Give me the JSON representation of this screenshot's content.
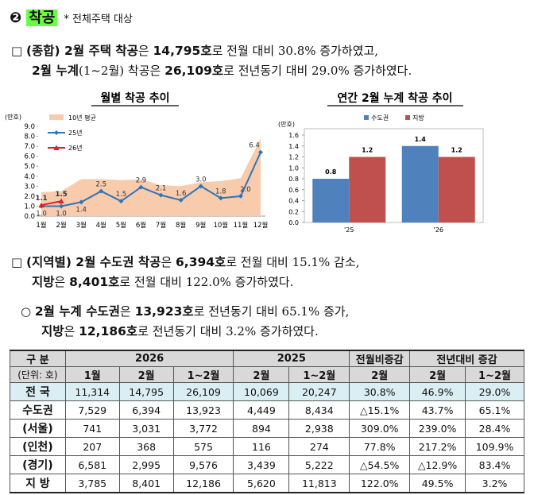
{
  "header": {
    "number": "❷",
    "title": "착공",
    "note": "* 전체주택 대상"
  },
  "paragraphs": [
    {
      "lines": [
        [
          {
            "t": "□ "
          },
          {
            "t": "(종합) 2월 주택 착공",
            "b": true
          },
          {
            "t": "은 "
          },
          {
            "t": "14,795호",
            "b": true
          },
          {
            "t": "로 전월 대비 30.8% 증가하였고,"
          }
        ],
        [
          {
            "t": "2월 누계",
            "b": true
          },
          {
            "t": "(1~2월) 착공은 "
          },
          {
            "t": "26,109호",
            "b": true
          },
          {
            "t": "로 전년동기 대비 29.0% 증가하였다."
          }
        ]
      ]
    },
    {
      "lines": [
        [
          {
            "t": "□ "
          },
          {
            "t": "(지역별) 2월 수도권 착공",
            "b": true
          },
          {
            "t": "은 "
          },
          {
            "t": "6,394호",
            "b": true
          },
          {
            "t": "로 전월 대비 15.1% 감소,"
          }
        ],
        [
          {
            "t": "지방",
            "b": true
          },
          {
            "t": "은 "
          },
          {
            "t": "8,401호",
            "b": true
          },
          {
            "t": "로 전월 대비 122.0% 증가하였다."
          }
        ]
      ]
    },
    {
      "lines": [
        [
          {
            "t": "○ "
          },
          {
            "t": "2월 누계 수도권",
            "b": true
          },
          {
            "t": "은 "
          },
          {
            "t": "13,923호",
            "b": true
          },
          {
            "t": "로 전년동기 대비 65.1% 증가,"
          }
        ],
        [
          {
            "t": "지방",
            "b": true
          },
          {
            "t": "은 "
          },
          {
            "t": "12,186호",
            "b": true
          },
          {
            "t": "로 전년동기 대비 3.2% 증가하였다."
          }
        ]
      ]
    }
  ],
  "chart_data": [
    {
      "type": "line",
      "title": "월별 착공 추이",
      "ylabel": "(만호)",
      "categories": [
        "1월",
        "2월",
        "3월",
        "4월",
        "5월",
        "6월",
        "7월",
        "8월",
        "9월",
        "10월",
        "11월",
        "12월"
      ],
      "series": [
        {
          "name": "10년 평균",
          "kind": "area",
          "color": "#f8cbad",
          "values": [
            2.4,
            2.5,
            3.7,
            3.7,
            3.6,
            3.7,
            3.1,
            3.0,
            3.4,
            3.5,
            3.8,
            7.8
          ]
        },
        {
          "name": "25년",
          "kind": "line",
          "color": "#2e75b6",
          "values": [
            1.0,
            1.0,
            1.4,
            2.5,
            1.5,
            2.9,
            2.1,
            1.6,
            3.0,
            1.8,
            2.0,
            6.4
          ],
          "value_labels": [
            "1.0",
            "1.0",
            "1.4",
            "2.5",
            "1.5",
            "2.9",
            "2.1",
            "1.6",
            "3.0",
            "1.8",
            "2.0",
            "6.4"
          ]
        },
        {
          "name": "26년",
          "kind": "line",
          "color": "#e02020",
          "values": [
            1.1,
            1.5,
            null,
            null,
            null,
            null,
            null,
            null,
            null,
            null,
            null,
            null
          ]
        }
      ],
      "ylim": [
        0,
        9
      ],
      "yticks": [
        {
          "value": 0,
          "label": "0.0"
        },
        {
          "value": 1,
          "label": "1.0"
        },
        {
          "value": 2,
          "label": "2.0"
        },
        {
          "value": 3,
          "label": "3.0"
        },
        {
          "value": 4,
          "label": "4.0"
        },
        {
          "value": 5,
          "label": "5.0"
        },
        {
          "value": 6,
          "label": "6.0"
        },
        {
          "value": 7,
          "label": "7.0"
        },
        {
          "value": 8,
          "label": "8.0"
        },
        {
          "value": 9,
          "label": "9.0"
        }
      ]
    },
    {
      "type": "bar",
      "title": "연간 2월 누계 착공 추이",
      "ylabel": "(만호)",
      "categories": [
        "'25",
        "'26"
      ],
      "series": [
        {
          "name": "수도권",
          "color": "#4f81bd",
          "values": [
            0.8,
            1.4
          ]
        },
        {
          "name": "지방",
          "color": "#c0504d",
          "values": [
            1.2,
            1.2
          ]
        }
      ],
      "ylim": [
        0,
        1.6
      ],
      "yticks": [
        {
          "value": 0,
          "label": "0.0"
        },
        {
          "value": 0.2,
          "label": "0.2"
        },
        {
          "value": 0.4,
          "label": "0.4"
        },
        {
          "value": 0.6,
          "label": "0.6"
        },
        {
          "value": 0.8,
          "label": "0.8"
        },
        {
          "value": 1.0,
          "label": "1.0"
        },
        {
          "value": 1.2,
          "label": "1.2"
        },
        {
          "value": 1.4,
          "label": "1.4"
        },
        {
          "value": 1.6,
          "label": "1.6"
        }
      ]
    }
  ],
  "table": {
    "head": [
      [
        "구 분",
        "2026",
        "2025",
        "전월비증감",
        "전년대비 증감"
      ],
      [
        "(단위: 호)",
        "1월",
        "2월",
        "1~2월",
        "2월",
        "1~2월",
        "2월",
        "2월",
        "1~2월"
      ]
    ],
    "rows": [
      [
        "전 국",
        "11,314",
        "14,795",
        "26,109",
        "10,069",
        "20,247",
        "30.8%",
        "46.9%",
        "29.0%"
      ],
      [
        "수도권",
        "7,529",
        "6,394",
        "13,923",
        "4,449",
        "8,434",
        "△15.1%",
        "43.7%",
        "65.1%"
      ],
      [
        "(서울)",
        "741",
        "3,031",
        "3,772",
        "894",
        "2,938",
        "309.0%",
        "239.0%",
        "28.4%"
      ],
      [
        "(인천)",
        "207",
        "368",
        "575",
        "116",
        "274",
        "77.8%",
        "217.2%",
        "109.9%"
      ],
      [
        "(경기)",
        "6,581",
        "2,995",
        "9,576",
        "3,439",
        "5,222",
        "△54.5%",
        "△12.9%",
        "83.4%"
      ],
      [
        "지 방",
        "3,785",
        "8,401",
        "12,186",
        "5,620",
        "11,813",
        "122.0%",
        "49.5%",
        "3.2%"
      ]
    ]
  }
}
